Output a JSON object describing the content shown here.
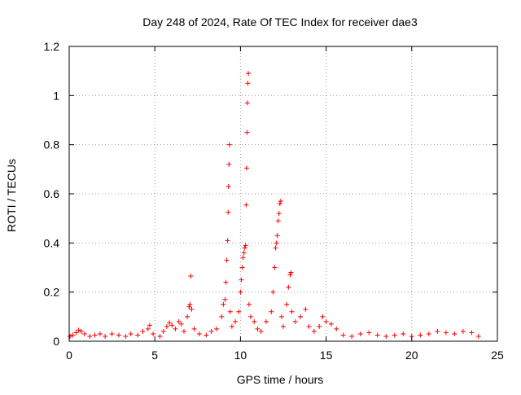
{
  "chart_data": {
    "type": "scatter",
    "title": "Day 248 of 2024, Rate Of TEC Index for receiver dae3",
    "xlabel": "GPS time / hours",
    "ylabel": "ROTI / TECUs",
    "xlim": [
      0,
      25
    ],
    "ylim": [
      0,
      1.2
    ],
    "x_ticks": [
      0,
      5,
      10,
      15,
      20,
      25
    ],
    "x_tick_labels": [
      "0",
      "5",
      "10",
      "15",
      "20",
      "25"
    ],
    "y_ticks": [
      0,
      0.2,
      0.4,
      0.6,
      0.8,
      1.0,
      1.2
    ],
    "y_tick_labels": [
      "0",
      "0.2",
      "0.4",
      "0.6",
      "0.8",
      "1",
      "1.2"
    ],
    "grid": true,
    "marker": "+",
    "marker_color": "#ff0000",
    "series": [
      {
        "points": [
          [
            0.05,
            0.02
          ],
          [
            0.2,
            0.025
          ],
          [
            0.4,
            0.035
          ],
          [
            0.55,
            0.045
          ],
          [
            0.7,
            0.04
          ],
          [
            0.9,
            0.03
          ],
          [
            1.2,
            0.02
          ],
          [
            1.5,
            0.025
          ],
          [
            1.8,
            0.03
          ],
          [
            2.1,
            0.02
          ],
          [
            2.5,
            0.03
          ],
          [
            2.9,
            0.025
          ],
          [
            3.3,
            0.02
          ],
          [
            3.6,
            0.03
          ],
          [
            4.0,
            0.025
          ],
          [
            4.3,
            0.04
          ],
          [
            4.6,
            0.05
          ],
          [
            4.7,
            0.065
          ],
          [
            4.9,
            0.03
          ],
          [
            5.3,
            0.02
          ],
          [
            5.5,
            0.04
          ],
          [
            5.7,
            0.06
          ],
          [
            5.85,
            0.075
          ],
          [
            6.0,
            0.065
          ],
          [
            6.2,
            0.05
          ],
          [
            6.4,
            0.08
          ],
          [
            6.55,
            0.07
          ],
          [
            6.7,
            0.04
          ],
          [
            6.9,
            0.1
          ],
          [
            7.0,
            0.14
          ],
          [
            7.05,
            0.15
          ],
          [
            7.1,
            0.265
          ],
          [
            7.15,
            0.13
          ],
          [
            7.3,
            0.05
          ],
          [
            7.6,
            0.03
          ],
          [
            8.0,
            0.025
          ],
          [
            8.3,
            0.04
          ],
          [
            8.6,
            0.05
          ],
          [
            8.9,
            0.1
          ],
          [
            9.0,
            0.15
          ],
          [
            9.1,
            0.17
          ],
          [
            9.15,
            0.24
          ],
          [
            9.2,
            0.33
          ],
          [
            9.25,
            0.41
          ],
          [
            9.28,
            0.525
          ],
          [
            9.3,
            0.63
          ],
          [
            9.33,
            0.72
          ],
          [
            9.35,
            0.8
          ],
          [
            9.4,
            0.12
          ],
          [
            9.5,
            0.06
          ],
          [
            9.7,
            0.08
          ],
          [
            9.9,
            0.12
          ],
          [
            10.0,
            0.2
          ],
          [
            10.05,
            0.25
          ],
          [
            10.1,
            0.3
          ],
          [
            10.15,
            0.34
          ],
          [
            10.2,
            0.36
          ],
          [
            10.25,
            0.38
          ],
          [
            10.3,
            0.39
          ],
          [
            10.33,
            0.555
          ],
          [
            10.36,
            0.705
          ],
          [
            10.38,
            0.85
          ],
          [
            10.4,
            0.97
          ],
          [
            10.43,
            1.05
          ],
          [
            10.46,
            1.09
          ],
          [
            10.5,
            0.15
          ],
          [
            10.6,
            0.1
          ],
          [
            10.8,
            0.08
          ],
          [
            11.0,
            0.05
          ],
          [
            11.2,
            0.04
          ],
          [
            11.5,
            0.08
          ],
          [
            11.8,
            0.12
          ],
          [
            11.9,
            0.2
          ],
          [
            12.0,
            0.3
          ],
          [
            12.05,
            0.38
          ],
          [
            12.1,
            0.4
          ],
          [
            12.15,
            0.43
          ],
          [
            12.2,
            0.49
          ],
          [
            12.25,
            0.52
          ],
          [
            12.3,
            0.56
          ],
          [
            12.35,
            0.57
          ],
          [
            12.4,
            0.1
          ],
          [
            12.5,
            0.06
          ],
          [
            12.7,
            0.15
          ],
          [
            12.8,
            0.22
          ],
          [
            12.9,
            0.27
          ],
          [
            12.95,
            0.28
          ],
          [
            13.0,
            0.12
          ],
          [
            13.2,
            0.08
          ],
          [
            13.5,
            0.1
          ],
          [
            13.8,
            0.13
          ],
          [
            14.0,
            0.06
          ],
          [
            14.3,
            0.04
          ],
          [
            14.6,
            0.06
          ],
          [
            14.8,
            0.1
          ],
          [
            15.0,
            0.08
          ],
          [
            15.3,
            0.07
          ],
          [
            15.6,
            0.05
          ],
          [
            16.0,
            0.025
          ],
          [
            16.5,
            0.02
          ],
          [
            17.0,
            0.03
          ],
          [
            17.5,
            0.035
          ],
          [
            18.0,
            0.025
          ],
          [
            18.5,
            0.02
          ],
          [
            19.0,
            0.025
          ],
          [
            19.5,
            0.03
          ],
          [
            20.0,
            0.02
          ],
          [
            20.5,
            0.025
          ],
          [
            21.0,
            0.03
          ],
          [
            21.5,
            0.04
          ],
          [
            22.0,
            0.035
          ],
          [
            22.5,
            0.03
          ],
          [
            23.0,
            0.04
          ],
          [
            23.5,
            0.035
          ],
          [
            23.9,
            0.02
          ]
        ]
      }
    ]
  }
}
